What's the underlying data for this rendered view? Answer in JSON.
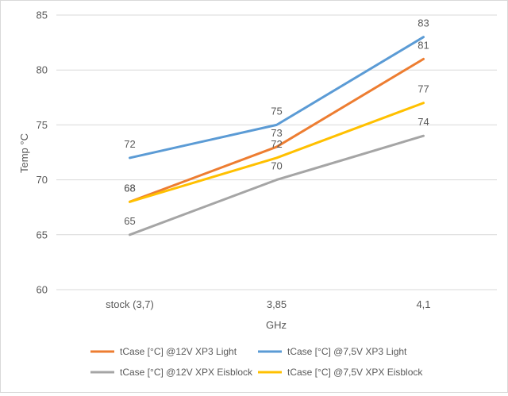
{
  "chart_data": {
    "type": "line",
    "title": "",
    "xlabel": "GHz",
    "ylabel": "Temp °C",
    "categories": [
      "stock (3,7)",
      "3,85",
      "4,1"
    ],
    "ylim": [
      60,
      85
    ],
    "yticks": [
      60,
      65,
      70,
      75,
      80,
      85
    ],
    "grid": true,
    "legend_position": "bottom",
    "series": [
      {
        "name": "tCase [°C] @12V XP3 Light",
        "values": [
          68,
          73,
          81
        ],
        "color": "#ed7d31"
      },
      {
        "name": "tCase [°C] @7,5V XP3 Light",
        "values": [
          72,
          75,
          83
        ],
        "color": "#5b9bd5"
      },
      {
        "name": "tCase [°C] @12V XPX Eisblock",
        "values": [
          65,
          70,
          74
        ],
        "color": "#a5a5a5"
      },
      {
        "name": "tCase [°C] @7,5V XPX Eisblock",
        "values": [
          68,
          72,
          77
        ],
        "color": "#ffc000"
      }
    ]
  }
}
